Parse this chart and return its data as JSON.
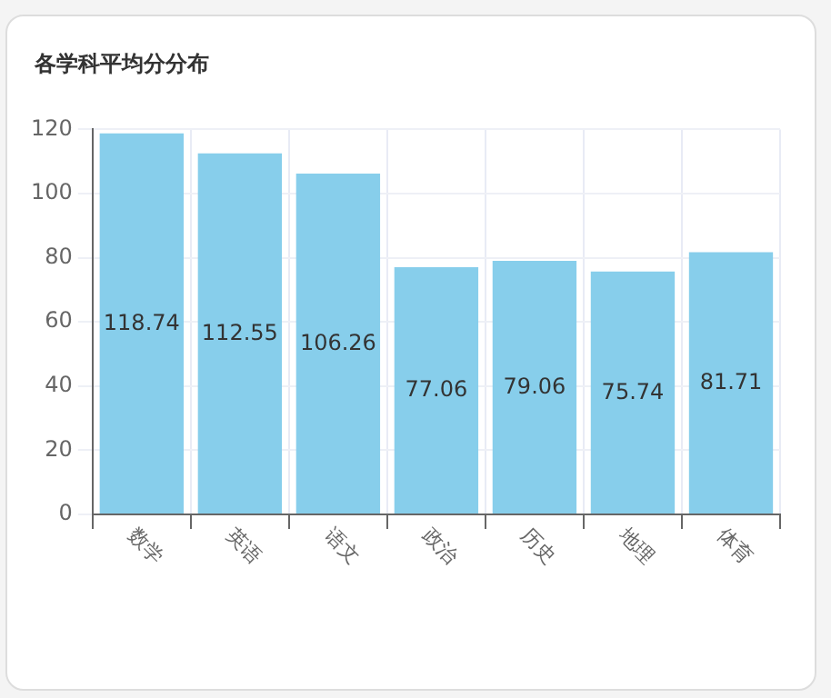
{
  "chart_data": {
    "type": "bar",
    "title": "各学科平均分分布",
    "categories": [
      "数学",
      "英语",
      "语文",
      "政治",
      "历史",
      "地理",
      "体育"
    ],
    "values": [
      118.74,
      112.55,
      106.26,
      77.06,
      79.06,
      75.74,
      81.71
    ],
    "color": "#87ceeb",
    "ylim": [
      0,
      120
    ],
    "yticks": [
      0,
      20,
      40,
      60,
      80,
      100,
      120
    ],
    "grid": true,
    "data_labels": true,
    "legend": false
  }
}
